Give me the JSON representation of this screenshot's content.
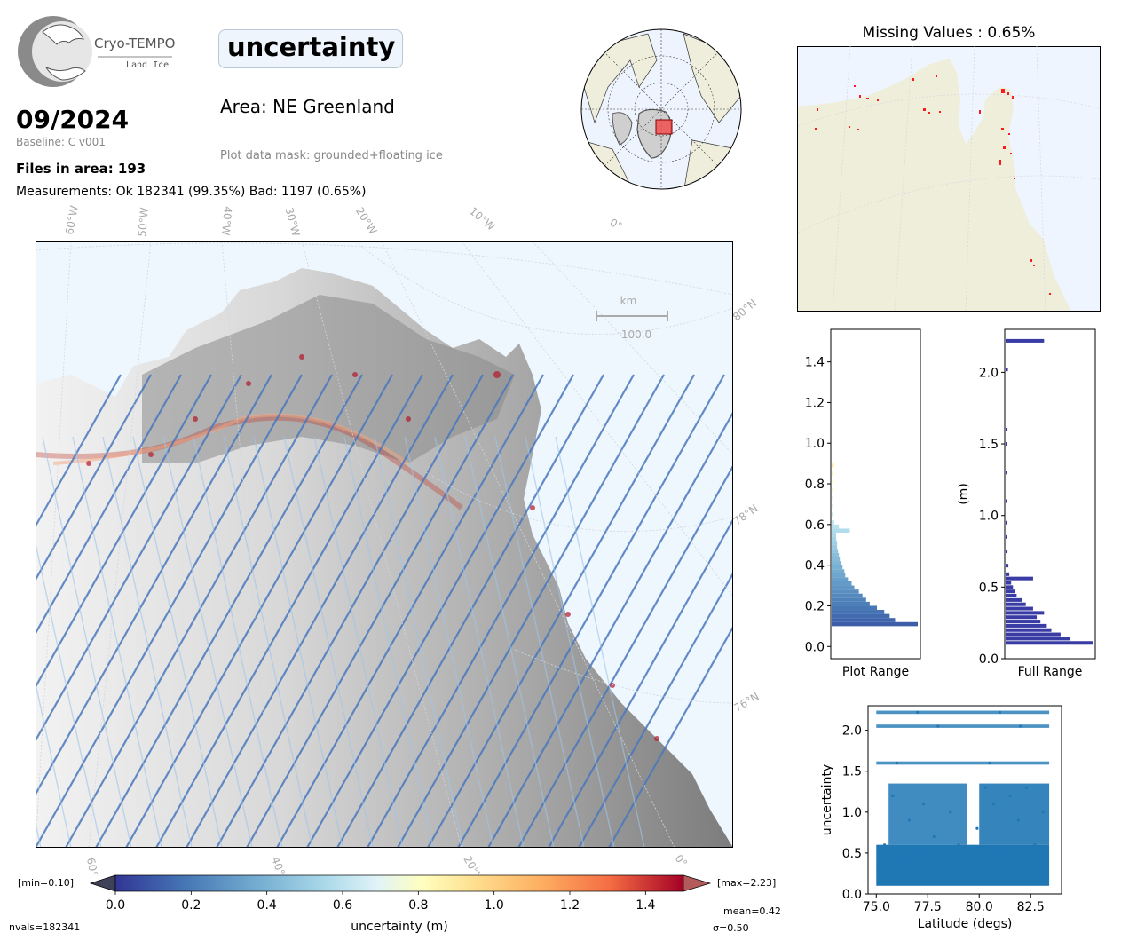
{
  "header": {
    "logo_name": "Cryo-TEMPO",
    "logo_sub": "Land Ice",
    "date": "09/2024",
    "baseline": "Baseline: C v001",
    "files": "Files in area: 193",
    "measurements": "Measurements: Ok 182341 (99.35%) Bad: 1197 (0.65%)",
    "parameter": "uncertainty",
    "area": "Area: NE Greenland",
    "mask": "Plot data mask: grounded+floating ice"
  },
  "missing_values": {
    "title": "Missing Values : 0.65%"
  },
  "main_map": {
    "lon_labels": [
      "60°W",
      "50°W",
      "40°W",
      "30°W",
      "20°W",
      "10°W",
      "0°"
    ],
    "lat_labels": [
      "80°N",
      "78°N",
      "76°N"
    ],
    "bottom_labels": [
      "60°W",
      "40°W",
      "20°W",
      "0°"
    ],
    "scalebar_unit": "km",
    "scalebar_value": "100.0"
  },
  "colorbar": {
    "min_label": "[min=0.10]",
    "max_label": "[max=2.23]",
    "ticks": [
      "0.0",
      "0.2",
      "0.4",
      "0.6",
      "0.8",
      "1.0",
      "1.2",
      "1.4"
    ],
    "label": "uncertainty (m)",
    "range": [
      0.0,
      1.5
    ]
  },
  "stats": {
    "nvals": "nvals=182341",
    "mean": "mean=0.42",
    "sigma": "σ=0.50"
  },
  "chart_data": [
    {
      "type": "bar",
      "orientation": "horizontal",
      "xlabel": "Plot Range",
      "ylabel": "",
      "ylim": [
        -0.06,
        1.56
      ],
      "yticks": [
        "0.0",
        "0.2",
        "0.4",
        "0.6",
        "0.8",
        "1.0",
        "1.2",
        "1.4"
      ],
      "bin_centers": [
        0.11,
        0.13,
        0.15,
        0.17,
        0.19,
        0.21,
        0.23,
        0.25,
        0.27,
        0.29,
        0.31,
        0.33,
        0.35,
        0.37,
        0.39,
        0.41,
        0.43,
        0.45,
        0.47,
        0.49,
        0.51,
        0.53,
        0.55,
        0.57,
        0.59,
        0.61,
        0.65,
        0.69,
        0.73,
        0.77,
        0.81,
        0.85,
        0.89
      ],
      "values": [
        95,
        70,
        64,
        58,
        50,
        42,
        38,
        34,
        30,
        25,
        22,
        18,
        15,
        14,
        12,
        10,
        9,
        8,
        7,
        6,
        6,
        5,
        5,
        20,
        8,
        3,
        2,
        1.5,
        1.2,
        1,
        1.5,
        2,
        2.5
      ]
    },
    {
      "type": "bar",
      "orientation": "horizontal",
      "xlabel": "Full Range",
      "ylabel": "(m)",
      "ylim": [
        0.0,
        2.3
      ],
      "yticks": [
        "0.0",
        "0.5",
        "1.0",
        "1.5",
        "2.0"
      ],
      "bin_centers": [
        0.11,
        0.14,
        0.17,
        0.2,
        0.23,
        0.26,
        0.29,
        0.32,
        0.35,
        0.38,
        0.41,
        0.44,
        0.47,
        0.5,
        0.53,
        0.56,
        0.59,
        0.65,
        0.75,
        0.85,
        0.95,
        1.1,
        1.3,
        1.5,
        1.6,
        2.02,
        2.22
      ],
      "values": [
        95,
        70,
        60,
        50,
        45,
        38,
        34,
        42,
        30,
        22,
        18,
        12,
        10,
        8,
        6,
        30,
        4,
        3,
        2,
        1.5,
        1.2,
        1,
        1.5,
        1,
        2,
        2.5,
        42
      ]
    },
    {
      "type": "scatter",
      "xlabel": "Latitude (degs)",
      "ylabel": "uncertainty",
      "xlim": [
        74.6,
        84.0
      ],
      "ylim": [
        0.0,
        2.3
      ],
      "xticks": [
        "75.0",
        "77.5",
        "80.0",
        "82.5"
      ],
      "yticks": [
        "0.0",
        "0.5",
        "1.0",
        "1.5",
        "2.0"
      ],
      "points": [
        [
          75.1,
          0.3
        ],
        [
          75.4,
          0.6
        ],
        [
          75.8,
          1.2
        ],
        [
          76.2,
          0.4
        ],
        [
          76.6,
          0.9
        ],
        [
          77.0,
          0.5
        ],
        [
          77.3,
          1.1
        ],
        [
          77.8,
          0.7
        ],
        [
          78.2,
          0.3
        ],
        [
          78.6,
          1.0
        ],
        [
          79.0,
          0.6
        ],
        [
          79.4,
          0.4
        ],
        [
          79.9,
          0.8
        ],
        [
          80.3,
          1.3
        ],
        [
          80.7,
          1.1
        ],
        [
          81.1,
          0.5
        ],
        [
          81.5,
          1.2
        ],
        [
          81.9,
          0.9
        ],
        [
          82.3,
          1.3
        ],
        [
          82.7,
          0.6
        ],
        [
          83.1,
          1.0
        ],
        [
          83.3,
          0.4
        ],
        [
          76.0,
          1.6
        ],
        [
          78.0,
          2.05
        ],
        [
          81.0,
          2.22
        ],
        [
          82.0,
          2.05
        ],
        [
          77.0,
          2.22
        ],
        [
          80.5,
          1.6
        ]
      ]
    }
  ]
}
